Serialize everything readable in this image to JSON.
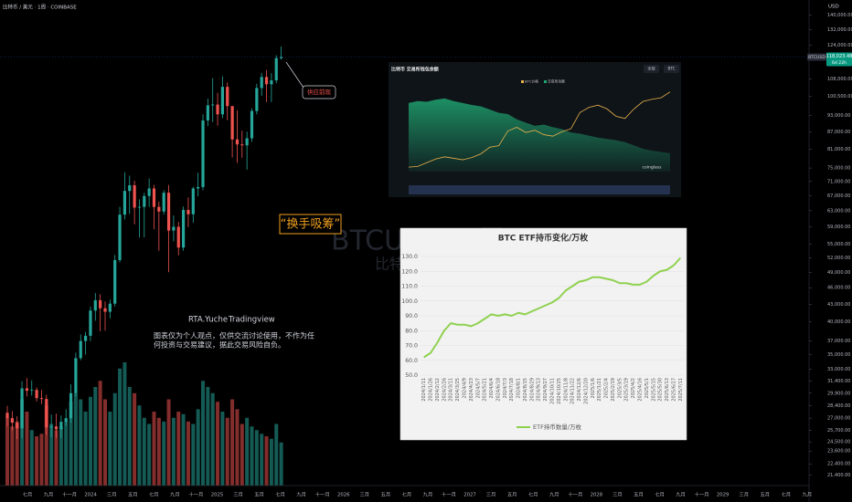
{
  "header": {
    "symbol": "比特币 / 美元 · 1周 · COINBASE"
  },
  "main_chart": {
    "scale": "log",
    "ylim": [
      20500,
      149000
    ],
    "currency": "USD",
    "yticks": [
      {
        "value": 140000,
        "label": "140,000.00"
      },
      {
        "value": 132000,
        "label": "132,000.00"
      },
      {
        "value": 124000,
        "label": "124,000.00"
      },
      {
        "value": 108000,
        "label": "108,000.00"
      },
      {
        "value": 100500,
        "label": "100,500.00"
      },
      {
        "value": 93000,
        "label": "93,000.00"
      },
      {
        "value": 87000,
        "label": "87,000.00"
      },
      {
        "value": 81000,
        "label": "81,000.00"
      },
      {
        "value": 75000,
        "label": "75,000.00"
      },
      {
        "value": 71000,
        "label": "71,000.00"
      },
      {
        "value": 67000,
        "label": "67,000.00"
      },
      {
        "value": 63000,
        "label": "63,000.00"
      },
      {
        "value": 59000,
        "label": "59,000.00"
      },
      {
        "value": 55000,
        "label": "55,000.00"
      },
      {
        "value": 52000,
        "label": "52,000.00"
      },
      {
        "value": 49000,
        "label": "49,000.00"
      },
      {
        "value": 46000,
        "label": "46,000.00"
      },
      {
        "value": 43000,
        "label": "43,000.00"
      },
      {
        "value": 40000,
        "label": "40,000.00"
      },
      {
        "value": 37000,
        "label": "37,000.00"
      },
      {
        "value": 35000,
        "label": "35,000.00"
      },
      {
        "value": 33000,
        "label": "33,000.00"
      },
      {
        "value": 31400,
        "label": "31,400.00"
      },
      {
        "value": 29900,
        "label": "29,900.00"
      },
      {
        "value": 28400,
        "label": "28,400.00"
      },
      {
        "value": 27000,
        "label": "27,000.00"
      },
      {
        "value": 25700,
        "label": "25,700.00"
      },
      {
        "value": 24500,
        "label": "24,500.00"
      },
      {
        "value": 23600,
        "label": "23,600.00"
      },
      {
        "value": 22400,
        "label": "22,400.00"
      },
      {
        "value": 21400,
        "label": "21,400.00"
      }
    ],
    "current_price": {
      "value": 118023.48,
      "label": "118,023.48",
      "countdown": "6d 22h",
      "tag": "BTCUSD"
    },
    "time_labels": [
      "七月",
      "九月",
      "十一月",
      "2024",
      "三月",
      "五月",
      "七月",
      "九月",
      "十一月",
      "2025",
      "三月",
      "五月",
      "七月",
      "九月",
      "十一月",
      "2026",
      "三月",
      "五月",
      "七月",
      "九月",
      "十一月",
      "2027",
      "三月",
      "五月",
      "七月",
      "九月",
      "十一月",
      "2028",
      "三月",
      "五月",
      "七月",
      "九月",
      "十一月",
      "2029",
      "三月",
      "五月",
      "七月",
      "九月"
    ],
    "up_color": "#26a69a",
    "down_color": "#ef5350",
    "candles": {
      "open": [
        27600,
        27000,
        26500,
        25900,
        30500,
        30200,
        30300,
        29300,
        29200,
        26000,
        26100,
        25800,
        26600,
        27000,
        29900,
        34500,
        37000,
        37800,
        41900,
        43700,
        42300,
        41700,
        43100,
        51500,
        62000,
        68300,
        69900,
        63800,
        64000,
        66900,
        69000,
        64000,
        62800,
        67800,
        58100,
        59000,
        54200,
        63200,
        62100,
        69000,
        69400,
        91100,
        96900,
        97200,
        93400,
        104500,
        96600,
        84300,
        82600,
        82300,
        84700,
        94700,
        104000,
        108800,
        105600,
        107300,
        117500
      ],
      "high": [
        28400,
        27800,
        27200,
        31400,
        31800,
        31500,
        30600,
        30300,
        29700,
        27400,
        27500,
        27300,
        28000,
        31000,
        35300,
        38000,
        38400,
        42600,
        45000,
        44800,
        43500,
        43800,
        52600,
        64000,
        73700,
        72700,
        71200,
        66000,
        67800,
        71900,
        70000,
        65400,
        68500,
        70000,
        61800,
        60200,
        64100,
        66500,
        69500,
        73600,
        93400,
        99600,
        108300,
        102000,
        109100,
        106400,
        96600,
        95000,
        87400,
        87000,
        95700,
        105800,
        110600,
        111900,
        110500,
        118900,
        123200
      ],
      "low": [
        26100,
        25700,
        24800,
        24900,
        29500,
        29600,
        28900,
        28600,
        25200,
        25000,
        24900,
        24900,
        26200,
        26500,
        29500,
        34200,
        35000,
        37000,
        40200,
        38500,
        38600,
        40600,
        42600,
        51000,
        60800,
        62200,
        59600,
        56500,
        56500,
        64000,
        58400,
        53500,
        62000,
        49000,
        55600,
        52500,
        53500,
        58900,
        60000,
        66800,
        68500,
        89000,
        90500,
        89200,
        92000,
        91200,
        78300,
        76600,
        78200,
        74500,
        83500,
        93400,
        100700,
        98200,
        98200,
        106000,
        116800
      ],
      "close": [
        27000,
        26500,
        25900,
        30500,
        30200,
        30300,
        29300,
        29200,
        26000,
        26100,
        25800,
        26600,
        27000,
        29900,
        34500,
        37000,
        37800,
        41900,
        43700,
        42300,
        41700,
        43100,
        51500,
        62000,
        68300,
        69900,
        63800,
        64000,
        66900,
        69000,
        64000,
        62800,
        67800,
        58100,
        59000,
        54200,
        63200,
        62100,
        69000,
        69400,
        91100,
        96900,
        97200,
        93400,
        104500,
        96600,
        84300,
        82600,
        82300,
        84700,
        94700,
        104000,
        108800,
        105600,
        107300,
        117500,
        118023.48
      ]
    },
    "volume": [
      55,
      48,
      52,
      70,
      60,
      45,
      40,
      42,
      65,
      50,
      45,
      48,
      52,
      68,
      75,
      70,
      60,
      72,
      80,
      85,
      70,
      60,
      75,
      95,
      100,
      80,
      75,
      65,
      55,
      50,
      60,
      55,
      52,
      70,
      55,
      60,
      58,
      52,
      50,
      62,
      85,
      80,
      75,
      68,
      60,
      55,
      70,
      62,
      50,
      55,
      48,
      45,
      42,
      40,
      38,
      50,
      35
    ],
    "watermark": {
      "symbol": "BTCUSD, 1周",
      "name": "比特币 / 美元"
    }
  },
  "annotations": {
    "callout": "供应前现",
    "highlight": "“换手吸筹”",
    "author": "RTA.Yuche",
    "platform": "Tradingview",
    "disclaimer": [
      "图表仅为个人观点，仅供交流讨论使用，不作为任",
      "何投资与交易建议，据此交易风险自负。"
    ]
  },
  "exchange_inset": {
    "title": "比特币 交易所钱包余额",
    "buttons": [
      "全部",
      "BTC"
    ],
    "watermark": "coinglass",
    "balance": {
      "name": "交易所余额",
      "color": "#1fa571",
      "ylim": [
        1.9,
        3.2
      ],
      "values": [
        2.95,
        2.98,
        2.97,
        3.0,
        3.02,
        2.98,
        2.95,
        2.92,
        2.9,
        2.85,
        2.8,
        2.78,
        2.7,
        2.65,
        2.6,
        2.62,
        2.58,
        2.55,
        2.5,
        2.48,
        2.45,
        2.42,
        2.4,
        2.38,
        2.35,
        2.3,
        2.25,
        2.22,
        2.2,
        2.18
      ]
    },
    "price": {
      "name": "BTC价格",
      "color": "#e8b04a",
      "ylim": [
        10,
        125
      ],
      "values": [
        16,
        17,
        22,
        27,
        30,
        28,
        26,
        29,
        34,
        43,
        45,
        65,
        70,
        63,
        66,
        60,
        58,
        64,
        68,
        90,
        97,
        100,
        95,
        85,
        82,
        95,
        105,
        108,
        110,
        118
      ]
    }
  },
  "etf_chart": {
    "type": "line",
    "title": "BTC ETF持币变化/万枚",
    "ylim": [
      50,
      130
    ],
    "yticks": [
      {
        "value": 50,
        "label": "50.0"
      },
      {
        "value": 60,
        "label": "60.0"
      },
      {
        "value": 70,
        "label": "70.0"
      },
      {
        "value": 80,
        "label": "80.0"
      },
      {
        "value": 90,
        "label": "90.0"
      },
      {
        "value": 100,
        "label": "100.0"
      },
      {
        "value": 110,
        "label": "110.0"
      },
      {
        "value": 120,
        "label": "120.0"
      },
      {
        "value": 130,
        "label": "130.0"
      }
    ],
    "categories": [
      "2024/1/11",
      "2024/1/26",
      "2024/2/12",
      "2024/2/26",
      "2024/3/11",
      "2024/3/25",
      "2024/4/9",
      "2024/4/23",
      "2024/5/7",
      "2024/5/21",
      "2024/6/4",
      "2024/6/18",
      "2024/7/3",
      "2024/7/18",
      "2024/8/1",
      "2024/8/15",
      "2024/8/29",
      "2024/9/13",
      "2024/9/27",
      "2024/10/11",
      "2024/10/25",
      "2024/11/8",
      "2024/11/22",
      "2024/12/6",
      "2024/12/20",
      "2025/1/6",
      "2025/1/21",
      "2025/2/4",
      "2025/2/19",
      "2025/3/5",
      "2025/3/19",
      "2025/4/2",
      "2025/4/16",
      "2025/5/1",
      "2025/5/15",
      "2025/5/30",
      "2025/6/13",
      "2025/6/27",
      "2025/7/11"
    ],
    "series": [
      {
        "name": "ETF持币数量/万枚",
        "color": "#8fd14f",
        "values": [
          62,
          65,
          72,
          80,
          85,
          84,
          84,
          83,
          85,
          88,
          91,
          90,
          91,
          90,
          92,
          91,
          93,
          95,
          97,
          99,
          102,
          107,
          110,
          113,
          114,
          116,
          116,
          115,
          114,
          112,
          112,
          111,
          111,
          113,
          117,
          120,
          121,
          124,
          129
        ]
      }
    ]
  }
}
